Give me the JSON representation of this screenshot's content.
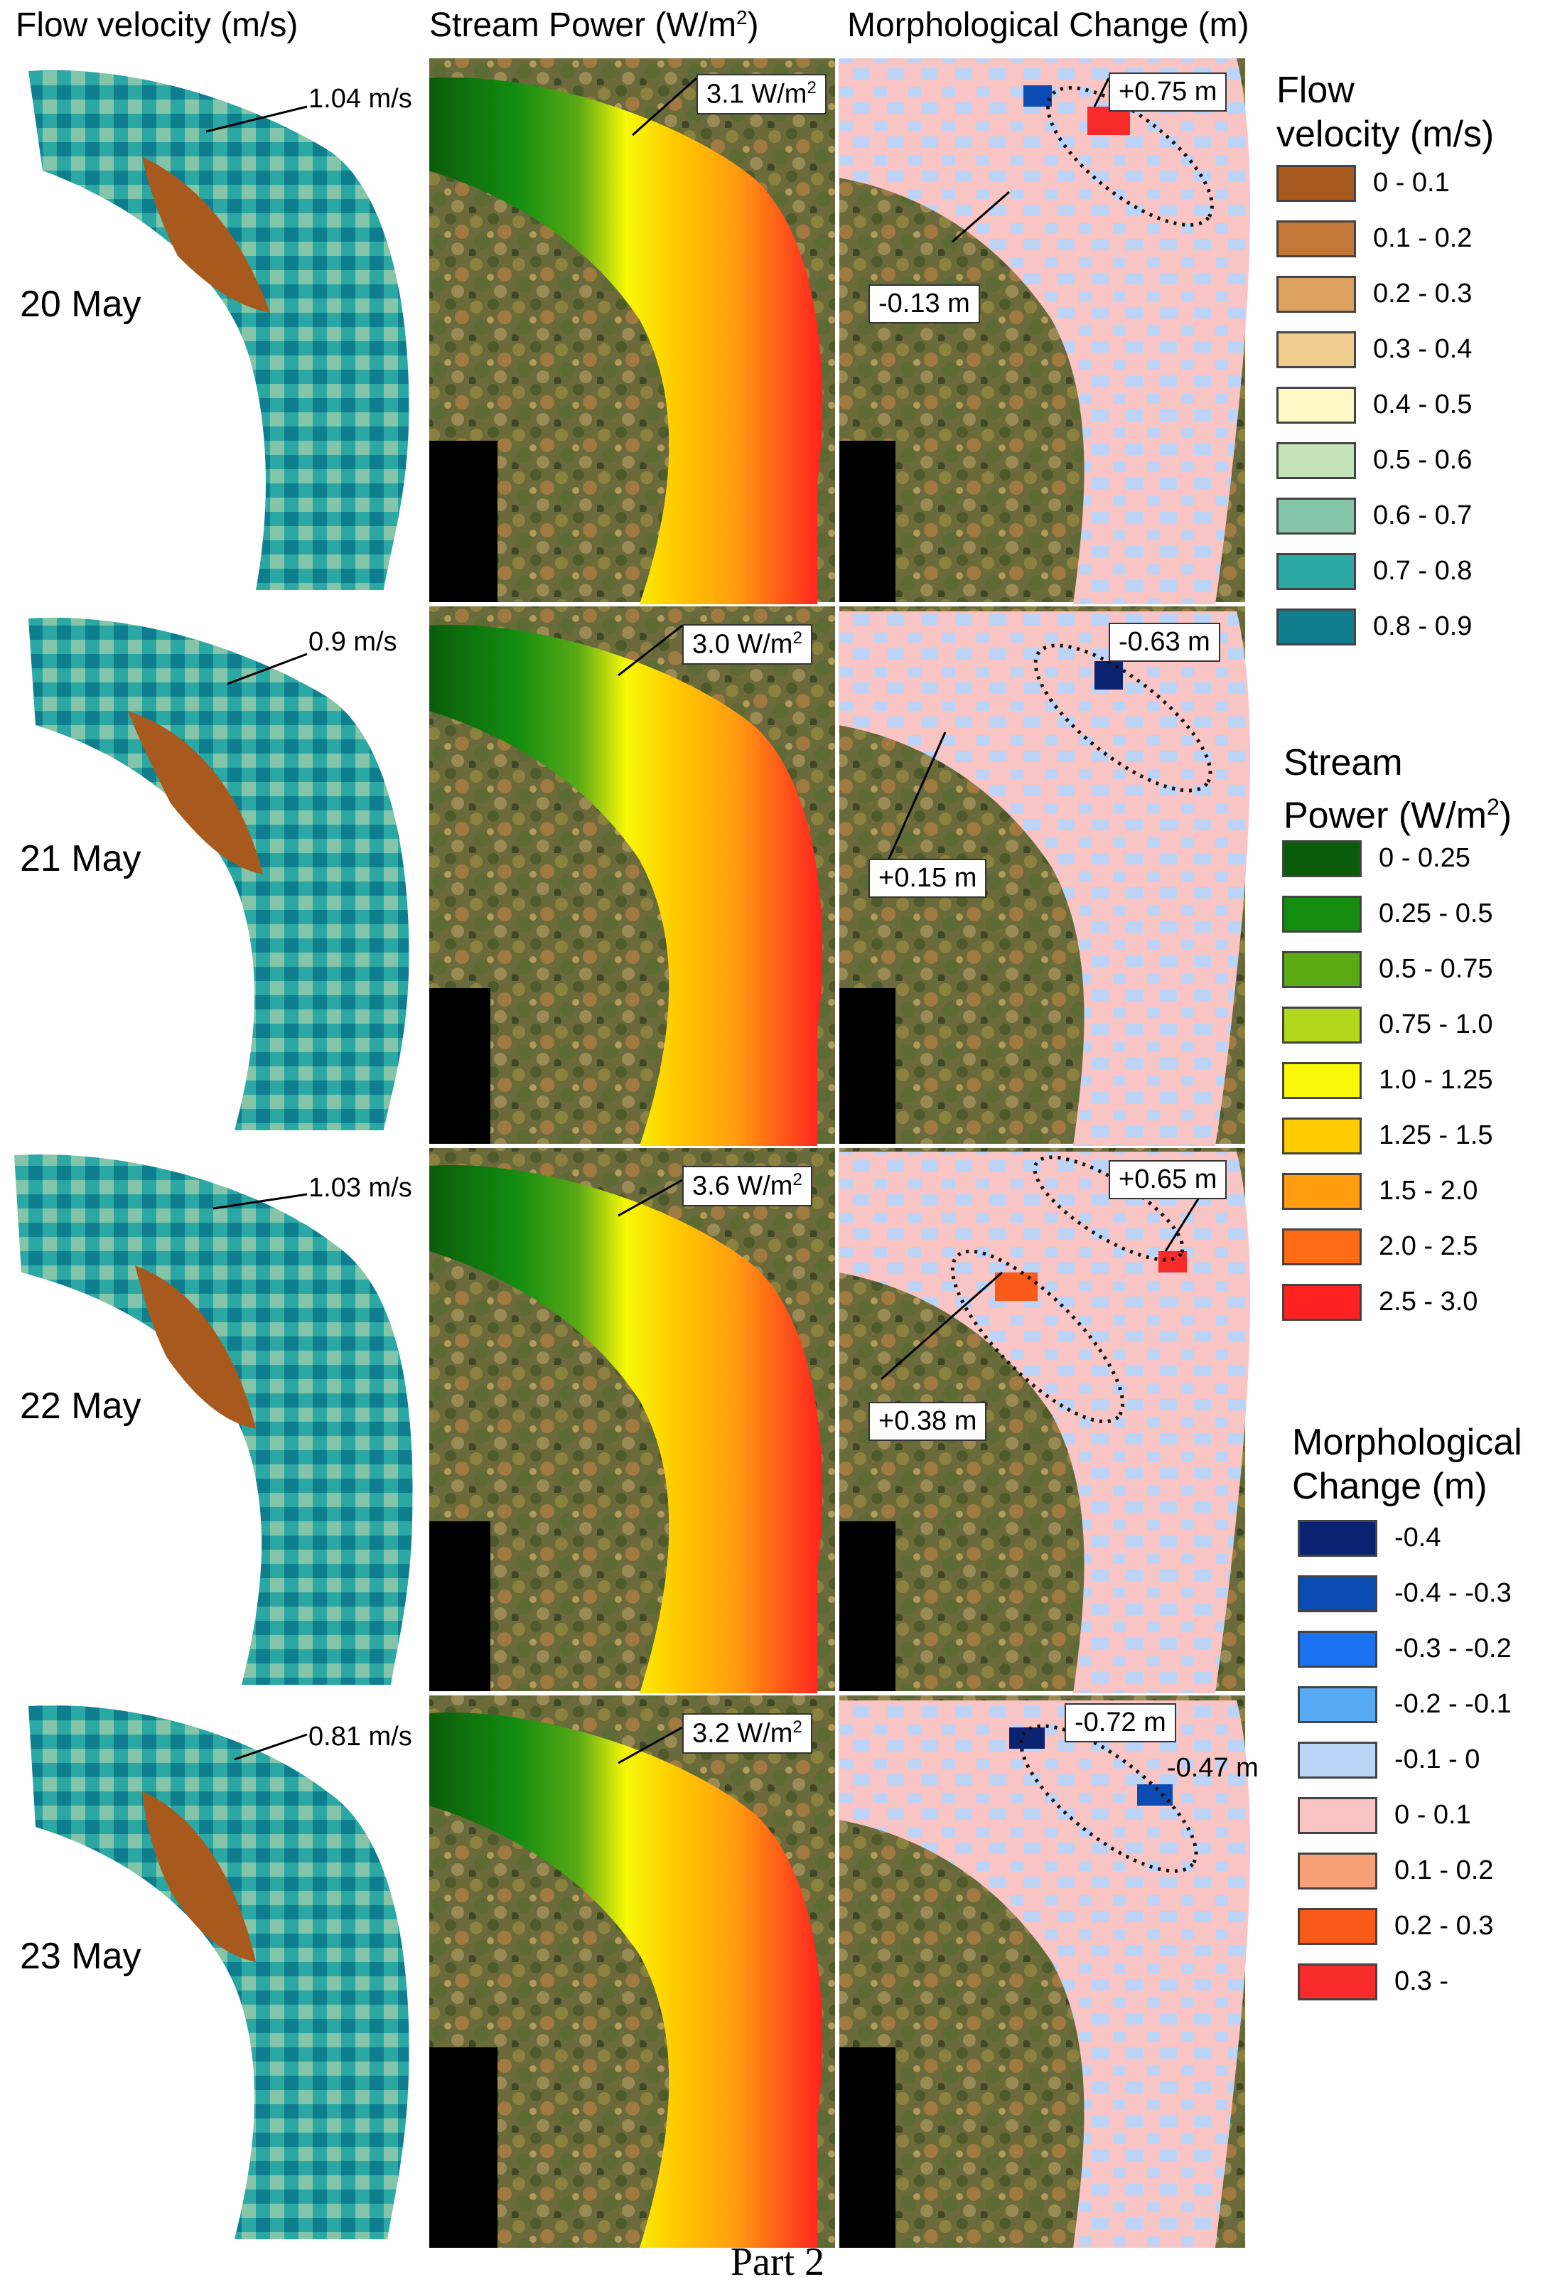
{
  "headers": {
    "col1": "Flow velocity (m/s)",
    "col2_main": "Stream Power (W/m",
    "col2_sup": "2",
    "col2_end": ")",
    "col3": "Morphological Change (m)"
  },
  "rows": [
    {
      "date": "20 May",
      "velocity_label": "1.04 m/s",
      "stream_power_label": "3.1 W/m",
      "stream_power_sup": "2",
      "morph_labels": [
        "+0.75 m",
        "-0.13 m"
      ]
    },
    {
      "date": "21 May",
      "velocity_label": "0.9 m/s",
      "stream_power_label": "3.0 W/m",
      "stream_power_sup": "2",
      "morph_labels": [
        "-0.63 m",
        "+0.15 m"
      ]
    },
    {
      "date": "22 May",
      "velocity_label": "1.03 m/s",
      "stream_power_label": "3.6 W/m",
      "stream_power_sup": "2",
      "morph_labels": [
        "+0.65 m",
        "+0.38 m"
      ]
    },
    {
      "date": "23 May",
      "velocity_label": "0.81 m/s",
      "stream_power_label": "3.2 W/m",
      "stream_power_sup": "2",
      "morph_labels": [
        "-0.72 m",
        "-0.47 m"
      ]
    }
  ],
  "legends": {
    "velocity": {
      "title_line1": "Flow",
      "title_line2": "velocity (m/s)",
      "items": [
        {
          "label": "0 - 0.1",
          "color": "#a85a1e"
        },
        {
          "label": "0.1 - 0.2",
          "color": "#c47838"
        },
        {
          "label": "0.2 - 0.3",
          "color": "#dca060"
        },
        {
          "label": "0.3 - 0.4",
          "color": "#f0cc8c"
        },
        {
          "label": "0.4 - 0.5",
          "color": "#fcf8c4"
        },
        {
          "label": "0.5 - 0.6",
          "color": "#c6e4bc"
        },
        {
          "label": "0.6 - 0.7",
          "color": "#84c4a8"
        },
        {
          "label": "0.7 - 0.8",
          "color": "#2ca8a4"
        },
        {
          "label": "0.8 - 0.9",
          "color": "#0e7e8e"
        }
      ]
    },
    "stream_power": {
      "title_line1": "Stream",
      "title_line2": "Power (W/m",
      "title_sup": "2",
      "title_end": ")",
      "items": [
        {
          "label": "0 - 0.25",
          "color": "#0a5c0a"
        },
        {
          "label": "0.25 - 0.5",
          "color": "#138c10"
        },
        {
          "label": "0.5 - 0.75",
          "color": "#5aaa14"
        },
        {
          "label": "0.75 - 1.0",
          "color": "#b2d81c"
        },
        {
          "label": "1.0 - 1.25",
          "color": "#f8f808"
        },
        {
          "label": "1.25 - 1.5",
          "color": "#ffcc00"
        },
        {
          "label": "1.5 - 2.0",
          "color": "#ff9c10"
        },
        {
          "label": "2.0 - 2.5",
          "color": "#ff6a14"
        },
        {
          "label": "2.5 - 3.0",
          "color": "#ff2020"
        }
      ]
    },
    "morphological": {
      "title_line1": "Morphological",
      "title_line2": "Change (m)",
      "items": [
        {
          "label": "-0.4",
          "color": "#0a2270"
        },
        {
          "label": "-0.4 - -0.3",
          "color": "#0a4cb4"
        },
        {
          "label": "-0.3 - -0.2",
          "color": "#1a72f0"
        },
        {
          "label": "-0.2 - -0.1",
          "color": "#58aaf4"
        },
        {
          "label": "-0.1 - 0",
          "color": "#bcd4f8"
        },
        {
          "label": "0 - 0.1",
          "color": "#f8c4c4"
        },
        {
          "label": "0.1 - 0.2",
          "color": "#f8a078"
        },
        {
          "label": "0.2 - 0.3",
          "color": "#f85a1a"
        },
        {
          "label": "0.3 -",
          "color": "#f82a2a"
        }
      ]
    }
  },
  "footer": "Part 2"
}
